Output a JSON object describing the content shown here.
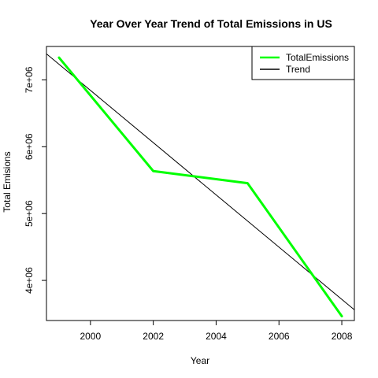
{
  "chart_data": {
    "type": "line",
    "title": "Year Over Year Trend of Total Emissions in US",
    "xlabel": "Year",
    "ylabel": "Total Emisions",
    "xlim": [
      1998.6,
      2008.4
    ],
    "ylim": [
      3400000,
      7500000
    ],
    "x_ticks": [
      2000,
      2002,
      2004,
      2006,
      2008
    ],
    "x_tick_labels": [
      "2000",
      "2002",
      "2004",
      "2006",
      "2008"
    ],
    "y_ticks": [
      4000000,
      5000000,
      6000000,
      7000000
    ],
    "y_tick_labels": [
      "4e+06",
      "5e+06",
      "6e+06",
      "7e+06"
    ],
    "grid": false,
    "legend_position": "top-right",
    "series": [
      {
        "name": "TotalEmissions",
        "color": "#00ff00",
        "x": [
          1999,
          2002,
          2005,
          2008
        ],
        "y": [
          7332967,
          5635780,
          5454703,
          3464206
        ]
      },
      {
        "name": "Trend",
        "color": "#000000",
        "x": [
          1998.6,
          2008.4
        ],
        "y": [
          7390000,
          3560000
        ]
      }
    ]
  }
}
